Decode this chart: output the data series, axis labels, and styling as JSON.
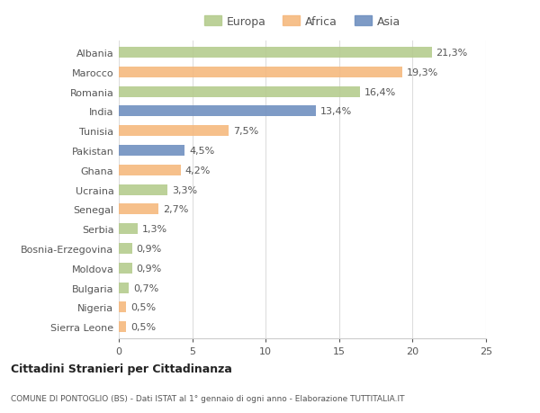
{
  "countries": [
    "Albania",
    "Marocco",
    "Romania",
    "India",
    "Tunisia",
    "Pakistan",
    "Ghana",
    "Ucraina",
    "Senegal",
    "Serbia",
    "Bosnia-Erzegovina",
    "Moldova",
    "Bulgaria",
    "Nigeria",
    "Sierra Leone"
  ],
  "values": [
    21.3,
    19.3,
    16.4,
    13.4,
    7.5,
    4.5,
    4.2,
    3.3,
    2.7,
    1.3,
    0.9,
    0.9,
    0.7,
    0.5,
    0.5
  ],
  "labels": [
    "21,3%",
    "19,3%",
    "16,4%",
    "13,4%",
    "7,5%",
    "4,5%",
    "4,2%",
    "3,3%",
    "2,7%",
    "1,3%",
    "0,9%",
    "0,9%",
    "0,7%",
    "0,5%",
    "0,5%"
  ],
  "continents": [
    "Europa",
    "Africa",
    "Europa",
    "Asia",
    "Africa",
    "Asia",
    "Africa",
    "Europa",
    "Africa",
    "Europa",
    "Europa",
    "Europa",
    "Europa",
    "Africa",
    "Africa"
  ],
  "colors": {
    "Europa": "#b5cc8e",
    "Africa": "#f5b97f",
    "Asia": "#7090c0"
  },
  "xlim": [
    0,
    25
  ],
  "xticks": [
    0,
    5,
    10,
    15,
    20,
    25
  ],
  "background_color": "#ffffff",
  "title1": "Cittadini Stranieri per Cittadinanza",
  "title2": "COMUNE DI PONTOGLIO (BS) - Dati ISTAT al 1° gennaio di ogni anno - Elaborazione TUTTITALIA.IT",
  "bar_height": 0.55,
  "label_fontsize": 8,
  "ytick_fontsize": 8,
  "xtick_fontsize": 8
}
